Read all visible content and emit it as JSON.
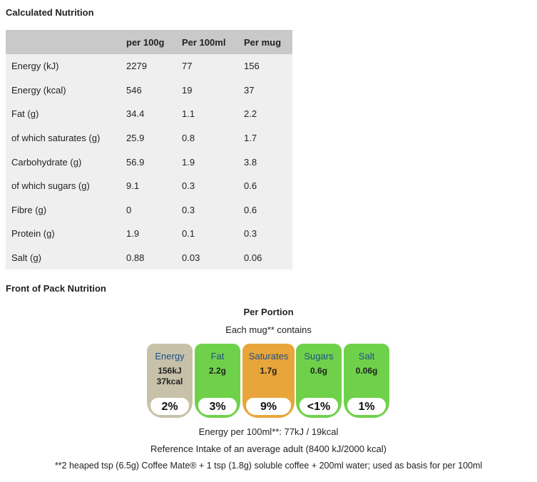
{
  "sections": {
    "calculated_title": "Calculated Nutrition",
    "front_title": "Front of Pack Nutrition"
  },
  "table": {
    "headers": [
      "",
      "per 100g",
      "Per 100ml",
      "Per mug"
    ],
    "rows": [
      [
        "Energy (kJ)",
        "2279",
        "77",
        "156"
      ],
      [
        "Energy (kcal)",
        "546",
        "19",
        "37"
      ],
      [
        "Fat (g)",
        "34.4",
        "1.1",
        "2.2"
      ],
      [
        "of which saturates (g)",
        "25.9",
        "0.8",
        "1.7"
      ],
      [
        "Carbohydrate (g)",
        "56.9",
        "1.9",
        "3.8"
      ],
      [
        "of which sugars (g)",
        "9.1",
        "0.3",
        "0.6"
      ],
      [
        "Fibre (g)",
        "0",
        "0.3",
        "0.6"
      ],
      [
        "Protein (g)",
        "1.9",
        "0.1",
        "0.3"
      ],
      [
        "Salt (g)",
        "0.88",
        "0.03",
        "0.06"
      ]
    ]
  },
  "front": {
    "per_portion": "Per Portion",
    "each_mug": "Each mug** contains",
    "lights": [
      {
        "name": "Energy",
        "value": "156kJ",
        "value2": "37kcal",
        "percent": "2%",
        "color": "#c6c1a8"
      },
      {
        "name": "Fat",
        "value": "2.2g",
        "percent": "3%",
        "color": "#6fd14a"
      },
      {
        "name": "Saturates",
        "value": "1.7g",
        "percent": "9%",
        "color": "#e8a53a"
      },
      {
        "name": "Sugars",
        "value": "0.6g",
        "percent": "<1%",
        "color": "#6fd14a"
      },
      {
        "name": "Salt",
        "value": "0.06g",
        "percent": "1%",
        "color": "#6fd14a"
      }
    ],
    "energy_per_100ml": "Energy per 100ml**: 77kJ / 19kcal",
    "reference": "Reference Intake of an average adult (8400 kJ/2000 kcal)",
    "footnote": "**2 heaped tsp (6.5g) Coffee Mate® + 1 tsp (1.8g) soluble coffee + 200ml water; used as basis for per 100ml"
  }
}
